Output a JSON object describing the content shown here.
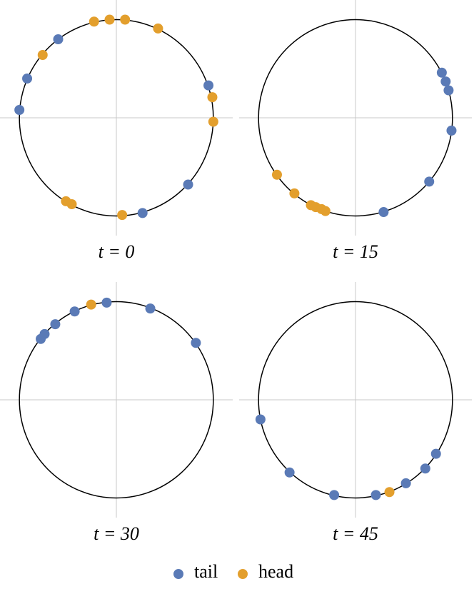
{
  "chart_data": [
    {
      "type": "scatter",
      "title": "t = 0",
      "xlim": [
        -1.2,
        1.2
      ],
      "ylim": [
        -1.2,
        1.2
      ],
      "series": [
        {
          "name": "tail",
          "color": "#5a7ab6",
          "x": [
            -0.6,
            -0.92,
            -1.0,
            0.95,
            0.74,
            0.27
          ],
          "y": [
            0.8,
            0.4,
            0.08,
            0.33,
            -0.68,
            -0.97
          ]
        },
        {
          "name": "head",
          "color": "#e39f2d",
          "x": [
            -0.23,
            -0.07,
            0.09,
            0.43,
            -0.76,
            0.99,
            1.0,
            -0.52,
            -0.46,
            0.06
          ],
          "y": [
            0.98,
            1.0,
            1.0,
            0.91,
            0.64,
            0.21,
            -0.04,
            -0.85,
            -0.88,
            -0.99
          ]
        }
      ]
    },
    {
      "type": "scatter",
      "title": "t = 15",
      "xlim": [
        -1.2,
        1.2
      ],
      "ylim": [
        -1.2,
        1.2
      ],
      "series": [
        {
          "name": "tail",
          "color": "#5a7ab6",
          "x": [
            0.89,
            0.93,
            0.96,
            0.99,
            0.76,
            0.29
          ],
          "y": [
            0.46,
            0.37,
            0.28,
            -0.13,
            -0.65,
            -0.96
          ]
        },
        {
          "name": "head",
          "color": "#e39f2d",
          "x": [
            -0.81,
            -0.63,
            -0.46,
            -0.41,
            -0.35,
            -0.31
          ],
          "y": [
            -0.58,
            -0.77,
            -0.89,
            -0.91,
            -0.93,
            -0.95
          ]
        }
      ]
    },
    {
      "type": "scatter",
      "title": "t = 30",
      "xlim": [
        -1.2,
        1.2
      ],
      "ylim": [
        -1.2,
        1.2
      ],
      "series": [
        {
          "name": "tail",
          "color": "#5a7ab6",
          "x": [
            -0.78,
            -0.74,
            -0.63,
            -0.43,
            -0.1,
            0.35,
            0.82
          ],
          "y": [
            0.62,
            0.67,
            0.77,
            0.9,
            0.99,
            0.93,
            0.58
          ]
        },
        {
          "name": "head",
          "color": "#e39f2d",
          "x": [
            -0.26
          ],
          "y": [
            0.97
          ]
        }
      ]
    },
    {
      "type": "scatter",
      "title": "t = 45",
      "xlim": [
        -1.2,
        1.2
      ],
      "ylim": [
        -1.2,
        1.2
      ],
      "series": [
        {
          "name": "tail",
          "color": "#5a7ab6",
          "x": [
            -0.98,
            -0.68,
            -0.22,
            0.21,
            0.52,
            0.72,
            0.83
          ],
          "y": [
            -0.2,
            -0.74,
            -0.97,
            -0.97,
            -0.85,
            -0.7,
            -0.55
          ]
        },
        {
          "name": "head",
          "color": "#e39f2d",
          "x": [
            0.35
          ],
          "y": [
            -0.94
          ]
        }
      ]
    }
  ]
}
